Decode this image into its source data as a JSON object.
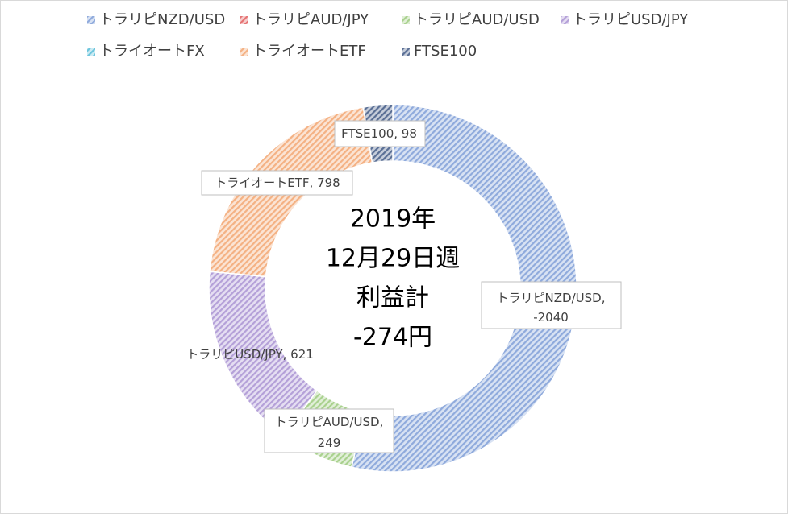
{
  "chart_data": {
    "type": "donut",
    "categories": [
      "トラリピNZD/USD",
      "トラリピAUD/JPY",
      "トラリピAUD/USD",
      "トラリピUSD/JPY",
      "トライオートFX",
      "トライオートETF",
      "FTSE100"
    ],
    "values": [
      -2040,
      0,
      249,
      621,
      0,
      798,
      98
    ],
    "colors": [
      "#8faadc",
      "#e57373",
      "#a9d18e",
      "#b4a0d8",
      "#6cc5dd",
      "#f4b183",
      "#5a6f95"
    ],
    "label_separator": ", ",
    "center_text": [
      "2019年",
      "12月29日週",
      "利益計",
      "-274円"
    ],
    "legend": "top"
  }
}
